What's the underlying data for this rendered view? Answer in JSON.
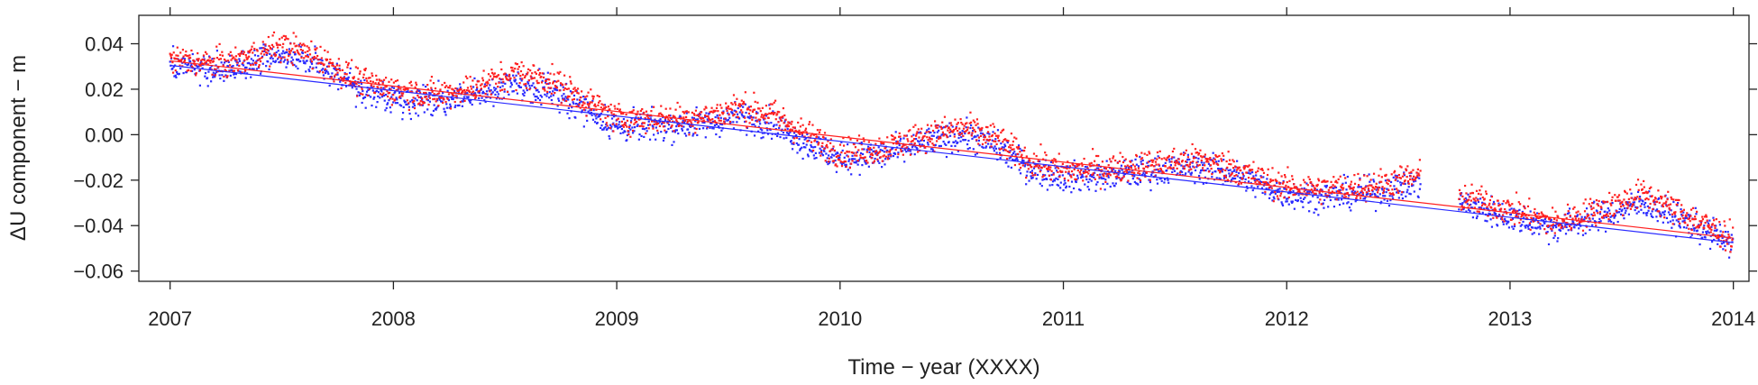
{
  "chart_data": {
    "type": "scatter",
    "title": "",
    "xlabel": "Time − year (XXXX)",
    "ylabel": "ΔU component − m",
    "xlim": [
      2006.86,
      2014.07
    ],
    "ylim": [
      -0.0645,
      0.0525
    ],
    "x_ticks": [
      2007,
      2008,
      2009,
      2010,
      2011,
      2012,
      2013,
      2014
    ],
    "x_tick_labels": [
      "2007",
      "2008",
      "2009",
      "2010",
      "2011",
      "2012",
      "2013",
      "2014"
    ],
    "y_ticks": [
      0.04,
      0.02,
      0.0,
      -0.02,
      -0.04,
      -0.06
    ],
    "y_tick_labels": [
      "0.04",
      "0.02",
      "0.00",
      "−0.02",
      "−0.04",
      "−0.06"
    ],
    "grid": false,
    "legend": "none",
    "colors": {
      "red": "#ff2020",
      "blue": "#2a2aff"
    },
    "data_gap": [
      2012.6,
      2012.77
    ],
    "series": [
      {
        "color": "#ff2020",
        "x": [
          2007.0,
          2007.25,
          2007.5,
          2007.65,
          2007.85,
          2008.0,
          2008.2,
          2008.4,
          2008.55,
          2008.7,
          2008.85,
          2009.0,
          2009.2,
          2009.4,
          2009.55,
          2009.7,
          2009.85,
          2010.0,
          2010.2,
          2010.4,
          2010.55,
          2010.7,
          2010.85,
          2011.0,
          2011.2,
          2011.4,
          2011.6,
          2011.75,
          2011.9,
          2012.0,
          2012.2,
          2012.4,
          2012.6,
          2012.77,
          2013.0,
          2013.2,
          2013.4,
          2013.6,
          2013.8,
          2014.0
        ],
        "y": [
          0.033,
          0.031,
          0.039,
          0.035,
          0.023,
          0.02,
          0.017,
          0.022,
          0.027,
          0.024,
          0.016,
          0.007,
          0.007,
          0.008,
          0.012,
          0.009,
          0.0,
          -0.008,
          -0.006,
          0.0,
          0.003,
          -0.002,
          -0.012,
          -0.016,
          -0.015,
          -0.013,
          -0.011,
          -0.014,
          -0.02,
          -0.023,
          -0.024,
          -0.022,
          -0.018,
          -0.027,
          -0.033,
          -0.039,
          -0.033,
          -0.026,
          -0.036,
          -0.046
        ],
        "trend": {
          "x": [
            2007.0,
            2014.0
          ],
          "y": [
            0.0325,
            -0.0455
          ]
        }
      },
      {
        "color": "#2a2aff",
        "x": [
          2007.0,
          2007.25,
          2007.5,
          2007.65,
          2007.85,
          2008.0,
          2008.2,
          2008.4,
          2008.55,
          2008.7,
          2008.85,
          2009.0,
          2009.2,
          2009.4,
          2009.55,
          2009.7,
          2009.85,
          2010.0,
          2010.2,
          2010.4,
          2010.55,
          2010.7,
          2010.85,
          2011.0,
          2011.2,
          2011.4,
          2011.6,
          2011.75,
          2011.9,
          2012.0,
          2012.2,
          2012.4,
          2012.6,
          2012.77,
          2013.0,
          2013.2,
          2013.4,
          2013.6,
          2013.8,
          2014.0
        ],
        "y": [
          0.03,
          0.028,
          0.035,
          0.032,
          0.02,
          0.016,
          0.014,
          0.018,
          0.022,
          0.02,
          0.012,
          0.003,
          0.004,
          0.005,
          0.008,
          0.005,
          -0.004,
          -0.011,
          -0.009,
          -0.003,
          0.0,
          -0.005,
          -0.015,
          -0.019,
          -0.018,
          -0.016,
          -0.014,
          -0.017,
          -0.023,
          -0.026,
          -0.027,
          -0.025,
          -0.021,
          -0.03,
          -0.036,
          -0.041,
          -0.036,
          -0.03,
          -0.039,
          -0.048
        ],
        "trend": {
          "x": [
            2007.0,
            2014.0
          ],
          "y": [
            0.0305,
            -0.0475
          ]
        }
      }
    ]
  }
}
